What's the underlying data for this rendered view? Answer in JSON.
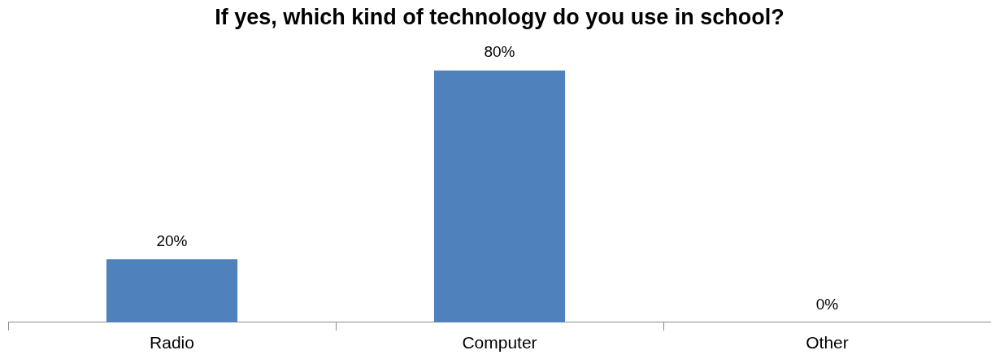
{
  "chart_data": {
    "type": "bar",
    "title": "If yes, which kind of technology do you use in school?",
    "categories": [
      "Radio",
      "Computer",
      "Other"
    ],
    "values": [
      20,
      80,
      0
    ],
    "value_labels": [
      "20%",
      "80%",
      "0%"
    ],
    "color": "#4f81bd",
    "grid": false,
    "legend": false
  }
}
